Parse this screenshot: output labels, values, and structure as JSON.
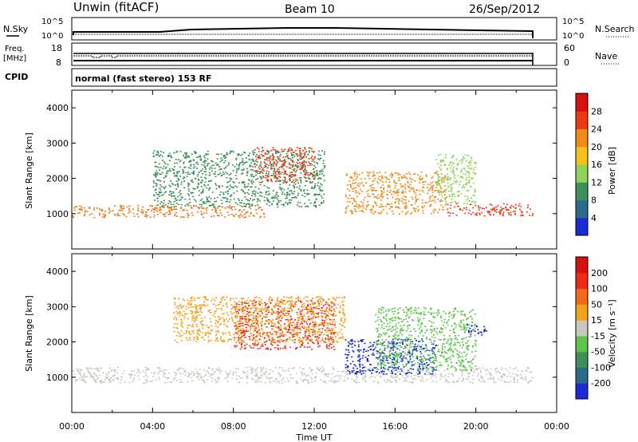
{
  "header": {
    "station": "Unwin (fitACF)",
    "beam": "Beam 10",
    "date": "26/Sep/2012"
  },
  "status_panels": {
    "nsky_label": "N.Sky",
    "nsearch_label": "N.Search",
    "noise_ticks_left": [
      "10^5",
      "10^0"
    ],
    "noise_ticks_right": [
      "10^5",
      "10^0"
    ],
    "freq_label_top": "Freq.",
    "freq_label_bottom": "[MHz]",
    "freq_ticks": [
      "18",
      "8"
    ],
    "nave_label": "Nave",
    "nave_ticks": [
      "60",
      "0"
    ],
    "cpid_label": "CPID",
    "cpid_text": "normal (fast stereo) 153 RF"
  },
  "chart_data": [
    {
      "type": "heatmap",
      "name": "power",
      "ylabel": "Slant Range [km]",
      "xlabel": "",
      "y_ticks": [
        "1000",
        "2000",
        "3000",
        "4000"
      ],
      "ylim": [
        0,
        4500
      ],
      "xlim": [
        "00:00",
        "24:00"
      ],
      "colorbar": {
        "label": "Power [dB]",
        "ticks": [
          "4",
          "8",
          "12",
          "16",
          "20",
          "24",
          "28"
        ],
        "colors": [
          "#1a2bd6",
          "#2c6a8c",
          "#3f8f5a",
          "#8fd35a",
          "#f2c21a",
          "#f28a1a",
          "#ee3a12",
          "#d61010"
        ]
      },
      "regions": [
        {
          "t0": 0.0,
          "t1": 9.5,
          "r0": 900,
          "r1": 1250,
          "color": "#ef7a1a"
        },
        {
          "t0": 4.0,
          "t1": 12.5,
          "r0": 1200,
          "r1": 2800,
          "color": "#3f8f5a"
        },
        {
          "t0": 9.0,
          "t1": 12.0,
          "r0": 1900,
          "r1": 2900,
          "color": "#ee3a12"
        },
        {
          "t0": 13.5,
          "t1": 18.5,
          "r0": 1000,
          "r1": 2200,
          "color": "#f28a1a"
        },
        {
          "t0": 18.5,
          "t1": 23.0,
          "r0": 950,
          "r1": 1300,
          "color": "#ee3a12"
        },
        {
          "t0": 18.0,
          "t1": 20.0,
          "r0": 1300,
          "r1": 2700,
          "color": "#8fd35a"
        }
      ]
    },
    {
      "type": "heatmap",
      "name": "velocity",
      "ylabel": "Slant Range [km]",
      "xlabel": "Time UT",
      "x_ticks": [
        "00:00",
        "04:00",
        "08:00",
        "12:00",
        "16:00",
        "20:00",
        "00:00"
      ],
      "y_ticks": [
        "1000",
        "2000",
        "3000",
        "4000"
      ],
      "ylim": [
        0,
        4500
      ],
      "xlim": [
        "00:00",
        "24:00"
      ],
      "colorbar": {
        "label": "Velocity [m s⁻¹]",
        "ticks": [
          "200",
          "100",
          "50",
          "15",
          "-15",
          "-50",
          "-100",
          "-200"
        ],
        "colors": [
          "#1a2bd6",
          "#2c6a8c",
          "#3f8f5a",
          "#5ec44a",
          "#c8c8c0",
          "#f2a21a",
          "#f26a1a",
          "#ee2a10",
          "#d61010"
        ]
      },
      "regions": [
        {
          "t0": 0.0,
          "t1": 23.0,
          "r0": 850,
          "r1": 1300,
          "color": "#c8c8c0"
        },
        {
          "t0": 8.0,
          "t1": 13.0,
          "r0": 1800,
          "r1": 3200,
          "color": "#ee2a10"
        },
        {
          "t0": 5.0,
          "t1": 13.5,
          "r0": 2000,
          "r1": 3300,
          "color": "#f2a21a"
        },
        {
          "t0": 13.5,
          "t1": 18.0,
          "r0": 1100,
          "r1": 2100,
          "color": "#1a2bd6"
        },
        {
          "t0": 15.0,
          "t1": 20.0,
          "r0": 1200,
          "r1": 3000,
          "color": "#5ec44a"
        },
        {
          "t0": 19.5,
          "t1": 20.5,
          "r0": 2200,
          "r1": 2500,
          "color": "#1a2bd6"
        }
      ]
    }
  ]
}
